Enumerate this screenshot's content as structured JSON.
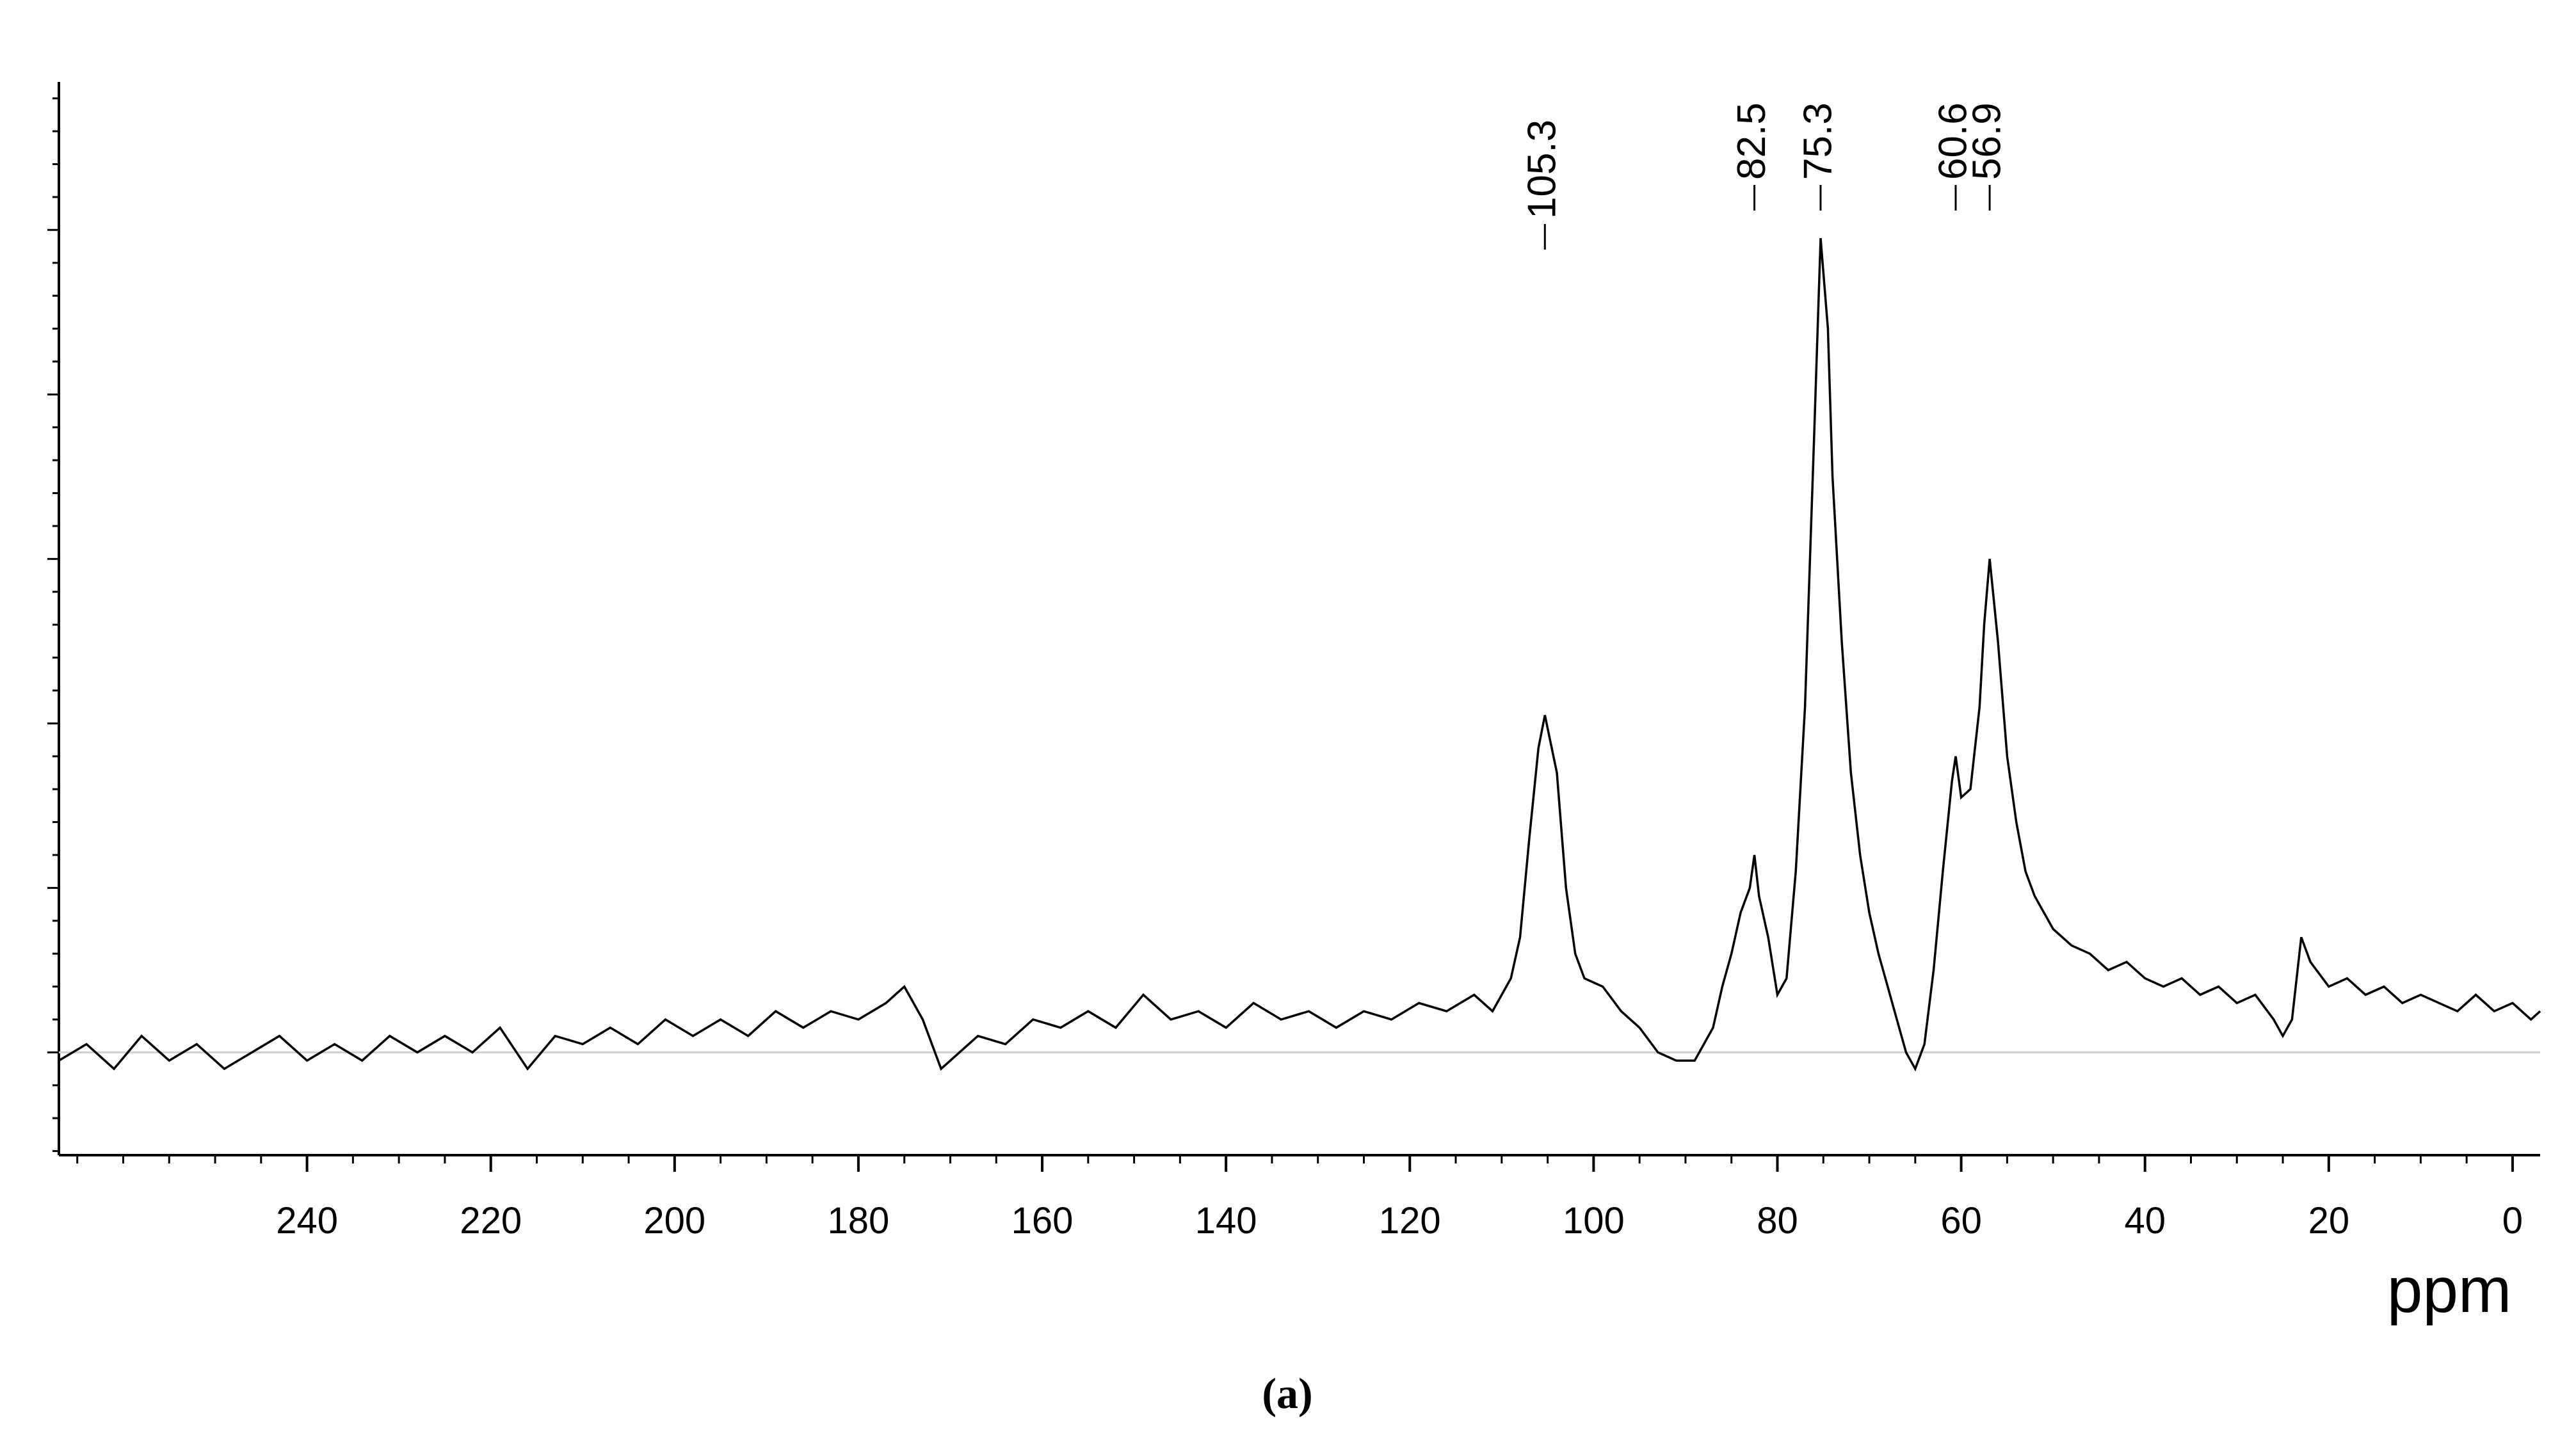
{
  "chart_data": {
    "type": "line",
    "x_label": "ppm",
    "caption": "(a)",
    "xlim": [
      267,
      -3
    ],
    "ylim": [
      -12.5,
      118
    ],
    "xticks": [
      240,
      220,
      200,
      180,
      160,
      140,
      120,
      100,
      80,
      60,
      40,
      20,
      0
    ],
    "color": "#000000",
    "peak_labels": [
      105.3,
      82.5,
      75.3,
      60.6,
      56.9
    ],
    "x": [
      267,
      264,
      261,
      258,
      255,
      252,
      249,
      246,
      243,
      240,
      237,
      234,
      231,
      228,
      225,
      222,
      219,
      216,
      213,
      210,
      207,
      204,
      201,
      198,
      195,
      192,
      189,
      186,
      183,
      180,
      177,
      175,
      173,
      171,
      169,
      167,
      164,
      161,
      158,
      155,
      152,
      149,
      146,
      143,
      140,
      137,
      134,
      131,
      128,
      125,
      122,
      119,
      116,
      113,
      111,
      109,
      108,
      107,
      106,
      105.3,
      104,
      103,
      102,
      101,
      99,
      97,
      95,
      93,
      91,
      89,
      87,
      86,
      85,
      84,
      83,
      82.5,
      82,
      81,
      80,
      79,
      78,
      77,
      76,
      75.3,
      74.5,
      74,
      73,
      72,
      71,
      70,
      69,
      68,
      67,
      66,
      65,
      64,
      63,
      62,
      61,
      60.6,
      60,
      59,
      58,
      57.5,
      56.9,
      56,
      55,
      54,
      53,
      52,
      51,
      50,
      48,
      46,
      44,
      42,
      40,
      38,
      36,
      34,
      32,
      30,
      28,
      26,
      25,
      24,
      23,
      22,
      20,
      18,
      16,
      14,
      12,
      10,
      8,
      6,
      4,
      2,
      0,
      -2,
      -3
    ],
    "values": [
      -1,
      1,
      -2,
      2,
      -1,
      1,
      -2,
      0,
      2,
      -1,
      1,
      -1,
      2,
      0,
      2,
      0,
      3,
      -2,
      2,
      1,
      3,
      1,
      4,
      2,
      4,
      2,
      5,
      3,
      5,
      4,
      6,
      8,
      4,
      -2,
      0,
      2,
      1,
      4,
      3,
      5,
      3,
      7,
      4,
      5,
      3,
      6,
      4,
      5,
      3,
      5,
      4,
      6,
      5,
      7,
      5,
      9,
      14,
      26,
      37,
      41,
      34,
      20,
      12,
      9,
      8,
      5,
      3,
      0,
      -1,
      -1,
      3,
      8,
      12,
      17,
      20,
      24,
      19,
      14,
      7,
      9,
      22,
      42,
      75,
      99,
      88,
      70,
      50,
      34,
      24,
      17,
      12,
      8,
      4,
      0,
      -2,
      1,
      10,
      22,
      33,
      36,
      31,
      32,
      42,
      52,
      60,
      50,
      36,
      28,
      22,
      19,
      17,
      15,
      13,
      12,
      10,
      11,
      9,
      8,
      9,
      7,
      8,
      6,
      7,
      4,
      2,
      4,
      14,
      11,
      8,
      9,
      7,
      8,
      6,
      7,
      6,
      5,
      7,
      5,
      6,
      4,
      5
    ]
  }
}
